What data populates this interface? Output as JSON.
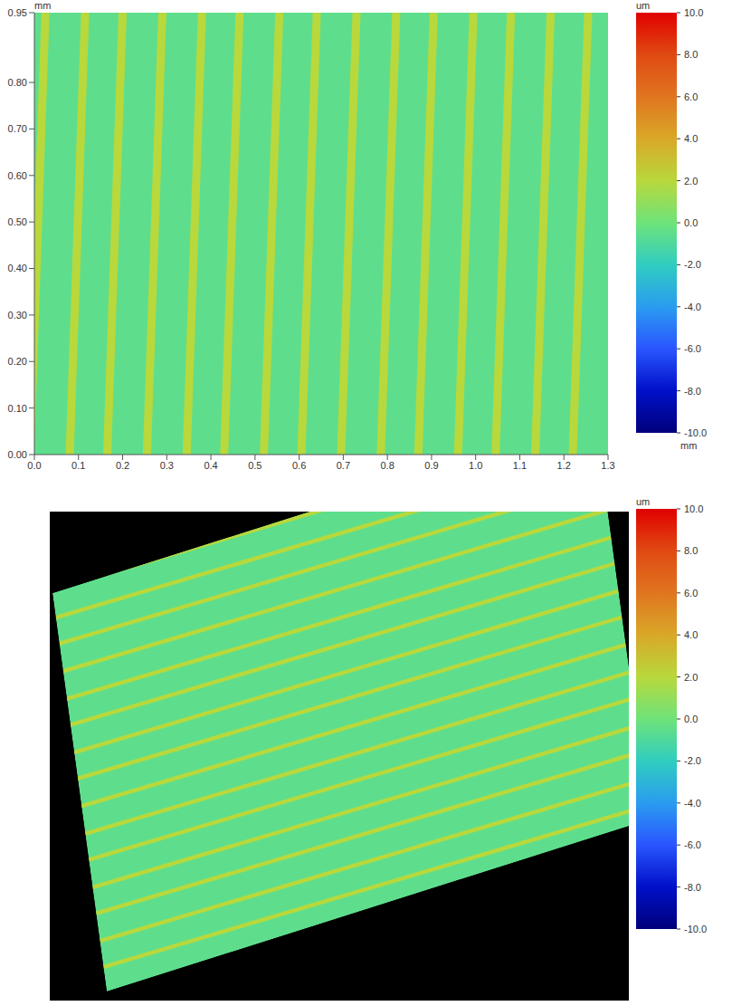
{
  "chart_data": [
    {
      "type": "heatmap",
      "x_label": "mm",
      "y_label": "mm",
      "xlim": [
        0,
        1.3
      ],
      "ylim": [
        0,
        0.95
      ],
      "xticks": [
        {
          "value": 0,
          "label": "0.0"
        },
        0.1,
        0.2,
        0.3,
        0.4,
        0.5,
        0.6,
        0.7,
        0.8,
        0.9,
        {
          "value": 1,
          "label": "1.0"
        },
        1.1,
        1.2,
        1.3
      ],
      "yticks": [
        {
          "value": 0,
          "label": "0.00"
        },
        {
          "value": 0.1,
          "label": "0.10"
        },
        {
          "value": 0.2,
          "label": "0.20"
        },
        {
          "value": 0.3,
          "label": "0.30"
        },
        {
          "value": 0.4,
          "label": "0.40"
        },
        {
          "value": 0.5,
          "label": "0.50"
        },
        {
          "value": 0.6,
          "label": "0.60"
        },
        {
          "value": 0.7,
          "label": "0.70"
        },
        {
          "value": 0.8,
          "label": "0.80"
        },
        {
          "value": 0.95,
          "label": "0.95"
        }
      ],
      "background_height": -0.5,
      "ridge_height": 2.0,
      "ridge_y": [
        0,
        0.95
      ],
      "ridges_x": [
        [
          -0.01,
          0.025
        ],
        [
          0.08,
          0.115
        ],
        [
          0.165,
          0.2
        ],
        [
          0.255,
          0.29
        ],
        [
          0.345,
          0.38
        ],
        [
          0.43,
          0.465
        ],
        [
          0.52,
          0.555
        ],
        [
          0.605,
          0.64
        ],
        [
          0.695,
          0.73
        ],
        [
          0.785,
          0.82
        ],
        [
          0.87,
          0.905
        ],
        [
          0.96,
          0.995
        ],
        [
          1.045,
          1.08
        ],
        [
          1.135,
          1.17
        ],
        [
          1.22,
          1.255
        ]
      ],
      "colorbar": {
        "label": "um",
        "range": [
          -10,
          10
        ],
        "ticks": [
          {
            "value": 10,
            "label": "10.0"
          },
          {
            "value": 8,
            "label": "8.0"
          },
          {
            "value": 6,
            "label": "6.0"
          },
          {
            "value": 4,
            "label": "4.0"
          },
          {
            "value": 2,
            "label": "2.0"
          },
          {
            "value": 0,
            "label": "0.0"
          },
          {
            "value": -2,
            "label": "-2.0"
          },
          {
            "value": -4,
            "label": "-4.0"
          },
          {
            "value": -6,
            "label": "-6.0"
          },
          {
            "value": -8,
            "label": "-8.0"
          },
          {
            "value": -10,
            "label": "-10.0"
          }
        ]
      }
    },
    {
      "type": "surface",
      "tick_labels": false,
      "xlim": [
        0,
        1.3
      ],
      "ylim": [
        0,
        0.95
      ],
      "background_height": -0.5,
      "ridge_height": 2.0,
      "ridge_y": [
        0,
        0.95
      ],
      "ridges_x": [
        [
          -0.01,
          0.025
        ],
        [
          0.08,
          0.115
        ],
        [
          0.165,
          0.2
        ],
        [
          0.255,
          0.29
        ],
        [
          0.345,
          0.38
        ],
        [
          0.43,
          0.465
        ],
        [
          0.52,
          0.555
        ],
        [
          0.605,
          0.64
        ],
        [
          0.695,
          0.73
        ],
        [
          0.785,
          0.82
        ],
        [
          0.87,
          0.905
        ],
        [
          0.96,
          0.995
        ],
        [
          1.045,
          1.08
        ],
        [
          1.135,
          1.17
        ],
        [
          1.22,
          1.255
        ]
      ],
      "colorbar": {
        "label": "um",
        "range": [
          -10,
          10
        ],
        "ticks": [
          {
            "value": 10,
            "label": "10.0"
          },
          {
            "value": 8,
            "label": "8.0"
          },
          {
            "value": 6,
            "label": "6.0"
          },
          {
            "value": 4,
            "label": "4.0"
          },
          {
            "value": 2,
            "label": "2.0"
          },
          {
            "value": 0,
            "label": "0.0"
          },
          {
            "value": -2,
            "label": "-2.0"
          },
          {
            "value": -4,
            "label": "-4.0"
          },
          {
            "value": -6,
            "label": "-6.0"
          },
          {
            "value": -8,
            "label": "-8.0"
          },
          {
            "value": -10,
            "label": "-10.0"
          }
        ]
      }
    }
  ]
}
